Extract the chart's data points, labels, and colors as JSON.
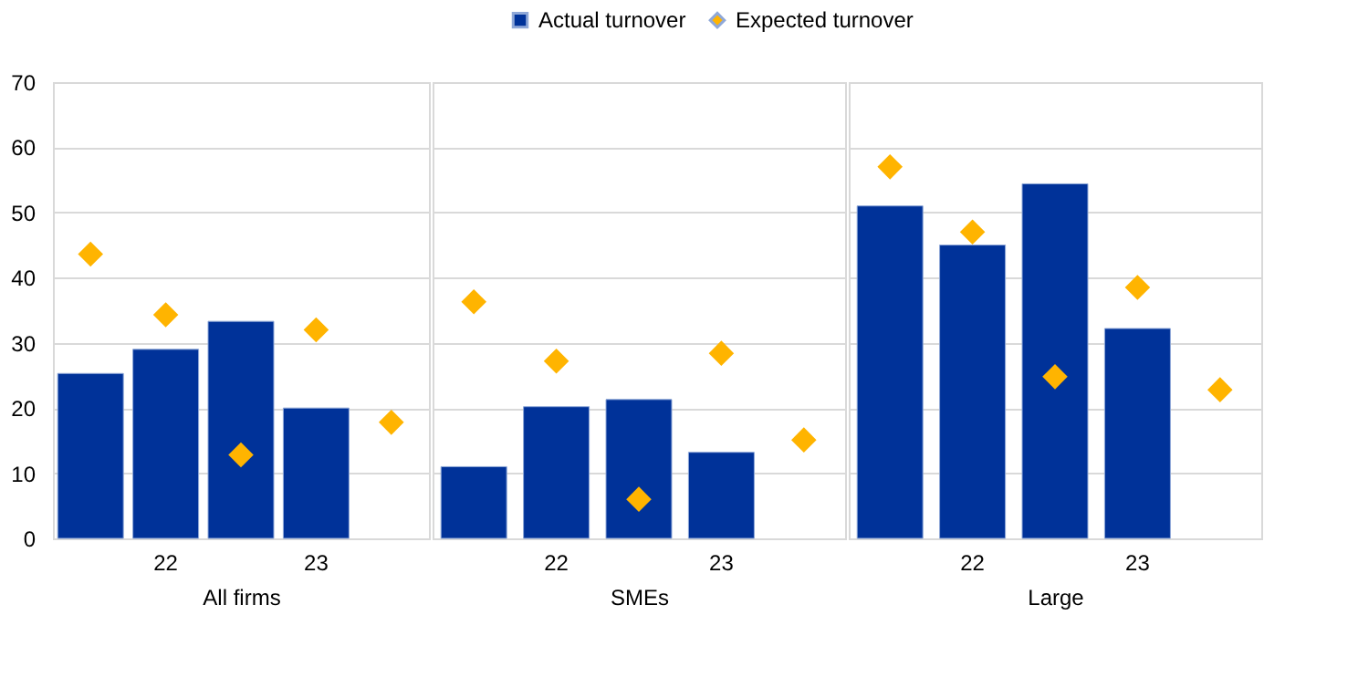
{
  "chart_data": [
    {
      "type": "bar",
      "categories": [
        null,
        "22",
        null,
        "23",
        null
      ],
      "xlabel": "All firms",
      "ylim": [
        0,
        70
      ],
      "yticks": [
        0,
        10,
        20,
        30,
        40,
        50,
        60,
        70
      ],
      "grid": "y",
      "legend": "top",
      "series": [
        {
          "name": "Actual turnover",
          "color": "#003299",
          "values": [
            25.3,
            29.0,
            33.3,
            20.0,
            null
          ]
        },
        {
          "name": "Expected turnover",
          "type": "scatter",
          "marker": "diamond",
          "color": "#ffb400",
          "values": [
            43.6,
            34.3,
            12.8,
            32.0,
            17.8
          ]
        }
      ]
    },
    {
      "type": "bar",
      "categories": [
        null,
        "22",
        null,
        "23",
        null
      ],
      "xlabel": "SMEs",
      "ylim": [
        0,
        70
      ],
      "yticks": [
        0,
        10,
        20,
        30,
        40,
        50,
        60,
        70
      ],
      "grid": "y",
      "legend": "top",
      "tick_labels": "x",
      "series": [
        {
          "name": "Actual turnover",
          "color": "#003299",
          "values": [
            11.0,
            20.2,
            21.3,
            13.2,
            null
          ]
        },
        {
          "name": "Expected turnover",
          "type": "scatter",
          "marker": "diamond",
          "color": "#ffb400",
          "values": [
            36.3,
            27.2,
            6.0,
            28.4,
            15.1
          ]
        }
      ]
    },
    {
      "type": "bar",
      "categories": [
        null,
        "22",
        null,
        "23",
        null
      ],
      "xlabel": "Large",
      "ylim": [
        0,
        70
      ],
      "yticks": [
        0,
        10,
        20,
        30,
        40,
        50,
        60,
        70
      ],
      "grid": "y",
      "legend": "top",
      "tick_labels": "x",
      "series": [
        {
          "name": "Actual turnover",
          "color": "#003299",
          "values": [
            51.0,
            45.0,
            54.4,
            32.2,
            null
          ]
        },
        {
          "name": "Expected turnover",
          "type": "scatter",
          "marker": "diamond",
          "color": "#ffb400",
          "values": [
            57.0,
            47.0,
            24.8,
            38.5,
            22.8
          ]
        }
      ]
    }
  ]
}
